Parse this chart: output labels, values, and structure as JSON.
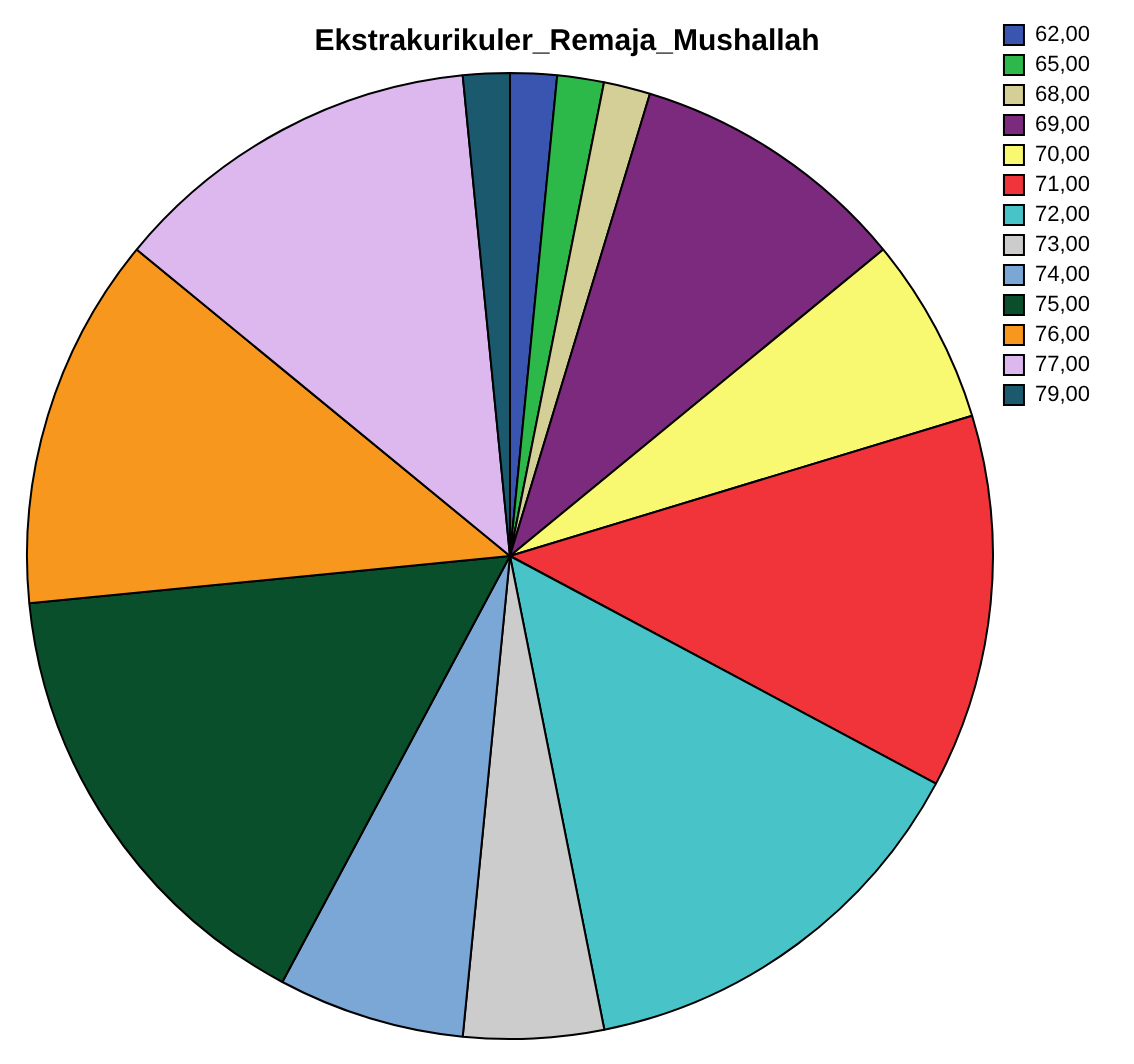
{
  "chart_data": {
    "type": "pie",
    "title": "Ekstrakurikuler_Remaja_Mushallah",
    "categories": [
      "62,00",
      "65,00",
      "68,00",
      "69,00",
      "70,00",
      "71,00",
      "72,00",
      "73,00",
      "74,00",
      "75,00",
      "76,00",
      "77,00",
      "79,00"
    ],
    "values": [
      1.56,
      1.56,
      1.56,
      9.38,
      6.25,
      12.5,
      14.06,
      4.69,
      6.25,
      15.63,
      12.5,
      12.5,
      1.56
    ],
    "colors": [
      "#3a55b0",
      "#2db84a",
      "#d4cf96",
      "#7b2a7e",
      "#f8f871",
      "#f0343a",
      "#48c3c8",
      "#cccccc",
      "#7ba7d6",
      "#0a4f2b",
      "#f7971d",
      "#dcb8ef",
      "#1b5a6e"
    ],
    "legend": "top right"
  }
}
